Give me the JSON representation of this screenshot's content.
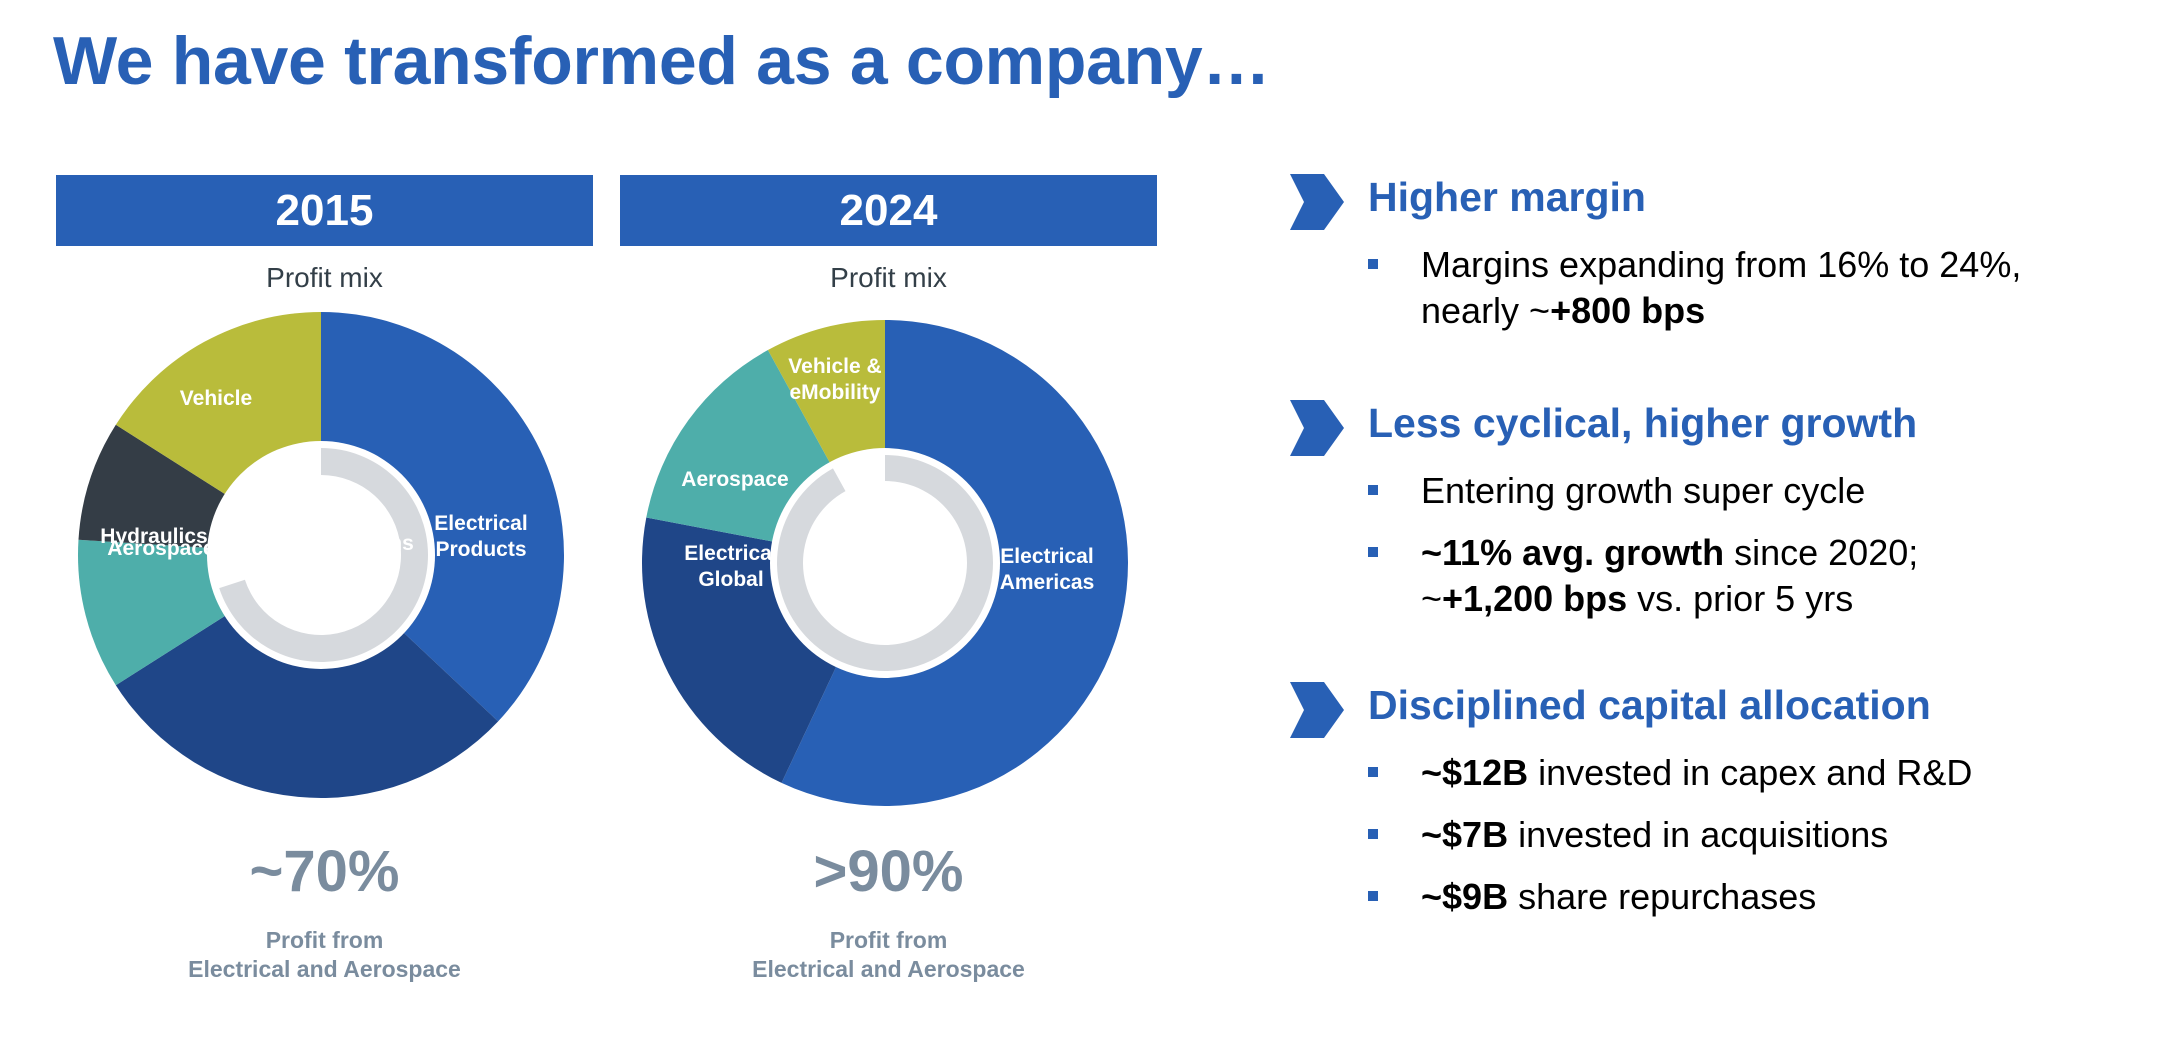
{
  "title": "We have transformed as a company…",
  "colors": {
    "blue": "#2860b5",
    "navy": "#1f4688",
    "olive": "#b9bc3b",
    "charcoal": "#343d46",
    "teal": "#4eaeaa",
    "ring": "#d6d9dd",
    "gray_text": "#7a8c9e"
  },
  "left_panel": {
    "year": "2015",
    "subtitle": "Profit mix",
    "big_value": "~70%",
    "caption_line1": "Profit from",
    "caption_line2": "Electrical and Aerospace"
  },
  "right_panel": {
    "year": "2024",
    "subtitle": "Profit mix",
    "big_value": ">90%",
    "caption_line1": "Profit from",
    "caption_line2": "Electrical and Aerospace"
  },
  "chart_data": [
    {
      "type": "pie",
      "title": "2015",
      "subtitle": "Profit mix",
      "categories": [
        "Electrical Products",
        "Electrical Systems and Services",
        "Aerospace",
        "Hydraulics",
        "Vehicle"
      ],
      "values": [
        37,
        29,
        10,
        8,
        16
      ],
      "colors": [
        "#2860b5",
        "#1f4688",
        "#4eaeaa",
        "#343d46",
        "#b9bc3b"
      ],
      "inner_ring_fraction": 0.7
    },
    {
      "type": "pie",
      "title": "2024",
      "subtitle": "Profit mix",
      "categories": [
        "Electrical Americas",
        "Electrical Global",
        "Aerospace",
        "Vehicle & eMobility"
      ],
      "values": [
        57,
        21,
        14,
        8
      ],
      "colors": [
        "#2860b5",
        "#1f4688",
        "#4eaeaa",
        "#b9bc3b"
      ],
      "inner_ring_fraction": 0.92
    }
  ],
  "highlights": [
    {
      "title": "Higher margin",
      "bullets": [
        {
          "lines": [
            {
              "parts": [
                {
                  "text": "Margins expanding from 16% to 24%,",
                  "bold": false
                }
              ]
            },
            {
              "parts": [
                {
                  "text": "nearly ~",
                  "bold": false
                },
                {
                  "text": "+800 bps",
                  "bold": true
                }
              ]
            }
          ]
        }
      ]
    },
    {
      "title": "Less cyclical, higher growth",
      "bullets": [
        {
          "lines": [
            {
              "parts": [
                {
                  "text": "Entering growth super cycle",
                  "bold": false
                }
              ]
            }
          ]
        },
        {
          "lines": [
            {
              "parts": [
                {
                  "text": "~11% avg. growth",
                  "bold": true
                },
                {
                  "text": " since 2020;",
                  "bold": false
                }
              ]
            },
            {
              "parts": [
                {
                  "text": "~",
                  "bold": false
                },
                {
                  "text": "+1,200 bps",
                  "bold": true
                },
                {
                  "text": " vs. prior 5 yrs",
                  "bold": false
                }
              ]
            }
          ]
        }
      ]
    },
    {
      "title": "Disciplined capital allocation",
      "bullets": [
        {
          "lines": [
            {
              "parts": [
                {
                  "text": "~$12B",
                  "bold": true
                },
                {
                  "text": " invested in capex and R&D",
                  "bold": false
                }
              ]
            }
          ]
        },
        {
          "lines": [
            {
              "parts": [
                {
                  "text": "~$7B",
                  "bold": true
                },
                {
                  "text": " invested in acquisitions",
                  "bold": false
                }
              ]
            }
          ]
        },
        {
          "lines": [
            {
              "parts": [
                {
                  "text": "~$9B",
                  "bold": true
                },
                {
                  "text": " share repurchases",
                  "bold": false
                }
              ]
            }
          ]
        }
      ]
    }
  ]
}
